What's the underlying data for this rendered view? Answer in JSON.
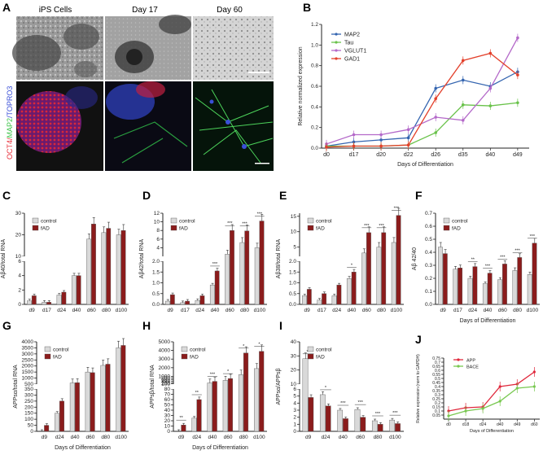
{
  "panel_letters": [
    "A",
    "B",
    "C",
    "D",
    "E",
    "F",
    "G",
    "H",
    "I",
    "J"
  ],
  "panel_a": {
    "column_titles": [
      "iPS Cells",
      "Day 17",
      "Day 60"
    ],
    "stain_label_parts": [
      {
        "text": "OCT4/",
        "color": "#e8303a"
      },
      {
        "text": "MAP2",
        "color": "#3ec44a"
      },
      {
        "text": "/TOPRO3",
        "color": "#3a4fd8"
      }
    ]
  },
  "colors": {
    "control": "#d9d9d9",
    "fad": "#8b1c1c",
    "map2": "#3465b0",
    "tau": "#69c24a",
    "vglut1": "#b469c9",
    "gad1": "#e3402b",
    "app": "#e0283c",
    "bace": "#78c850"
  },
  "chart_data": [
    {
      "panel": "B",
      "type": "line",
      "x": [
        "d0",
        "d17",
        "d20",
        "d22",
        "d26",
        "d35",
        "d40",
        "d49"
      ],
      "xlabel": "Days of Differentiation",
      "ylabel": "Relative normalized expression",
      "ylim": [
        0,
        1.2
      ],
      "yticks": [
        "0.0",
        "0.2",
        "0.4",
        "0.6",
        "0.8",
        "1.0",
        "1.2"
      ],
      "series": [
        {
          "name": "MAP2",
          "values": [
            0.02,
            0.06,
            0.08,
            0.1,
            0.58,
            0.66,
            0.6,
            0.74
          ]
        },
        {
          "name": "Tau",
          "values": [
            0.02,
            0.02,
            0.02,
            0.03,
            0.15,
            0.42,
            0.41,
            0.44
          ]
        },
        {
          "name": "VGLUT1",
          "values": [
            0.04,
            0.13,
            0.13,
            0.18,
            0.3,
            0.27,
            0.58,
            1.07
          ]
        },
        {
          "name": "GAD1",
          "values": [
            0.01,
            0.02,
            0.02,
            0.03,
            0.48,
            0.85,
            0.92,
            0.71
          ]
        }
      ]
    },
    {
      "panel": "C",
      "type": "bar",
      "ylabel": "Aβ40/total RNA",
      "xlabel": "",
      "categories": [
        "d9",
        "d17",
        "d24",
        "d40",
        "d60",
        "d80",
        "d100"
      ],
      "series": [
        {
          "name": "control",
          "values": [
            0.5,
            0.3,
            1.3,
            4.0,
            18,
            21,
            20
          ]
        },
        {
          "name": "fAD",
          "values": [
            1.2,
            0.3,
            1.7,
            4.0,
            25,
            23,
            22
          ]
        }
      ],
      "broken_axis": {
        "lower": [
          0,
          6
        ],
        "upper": [
          10,
          30
        ]
      },
      "yticks": [
        "0",
        "2",
        "4",
        "6",
        "10",
        "20",
        "30"
      ],
      "legend": [
        "control",
        "fAD"
      ],
      "significance": []
    },
    {
      "panel": "D",
      "type": "bar",
      "ylabel": "Aβ42/total RNA",
      "xlabel": "",
      "categories": [
        "d9",
        "d17",
        "d24",
        "d40",
        "d60",
        "d80",
        "d100"
      ],
      "series": [
        {
          "name": "control",
          "values": [
            0.15,
            0.08,
            0.18,
            0.9,
            2.5,
            5.2,
            4.0
          ]
        },
        {
          "name": "fAD",
          "values": [
            0.45,
            0.15,
            0.4,
            1.55,
            8.0,
            7.9,
            10.2
          ]
        }
      ],
      "broken_axis": {
        "lower": [
          0,
          2.0
        ],
        "upper": [
          2,
          12
        ]
      },
      "yticks": [
        "0.0",
        "0.5",
        "1.0",
        "1.5",
        "2.0",
        "4",
        "6",
        "8",
        "10",
        "12"
      ],
      "legend": [
        "control",
        "fAD"
      ],
      "significance": [
        "",
        "",
        "",
        "***",
        "***",
        "***",
        "***"
      ]
    },
    {
      "panel": "E",
      "type": "bar",
      "ylabel": "Aβ38/total RNA",
      "xlabel": "",
      "categories": [
        "d9",
        "d17",
        "d24",
        "d40",
        "d60",
        "d80",
        "d100"
      ],
      "series": [
        {
          "name": "control",
          "values": [
            0.4,
            0.2,
            0.4,
            1.2,
            3.1,
            5,
            6.5
          ]
        },
        {
          "name": "fAD",
          "values": [
            0.7,
            0.5,
            0.9,
            1.5,
            9.7,
            9.7,
            15.3
          ]
        }
      ],
      "broken_axis": {
        "lower": [
          0,
          2.0
        ],
        "upper": [
          2,
          16
        ]
      },
      "yticks": [
        "0.0",
        "0.5",
        "1.0",
        "1.5",
        "2.0",
        "5",
        "10",
        "15"
      ],
      "legend": [
        "control",
        "fAD"
      ],
      "significance": [
        "",
        "",
        "",
        "*",
        "***",
        "***",
        "***"
      ]
    },
    {
      "panel": "F",
      "type": "bar",
      "ylabel": "Aβ 42/40",
      "xlabel": "Days of Differentiation",
      "categories": [
        "d9",
        "d17",
        "d24",
        "d40",
        "d60",
        "d80",
        "d100"
      ],
      "series": [
        {
          "name": "control",
          "values": [
            0.44,
            0.27,
            0.2,
            0.16,
            0.19,
            0.26,
            0.23
          ]
        },
        {
          "name": "fAD",
          "values": [
            0.39,
            0.28,
            0.29,
            0.24,
            0.31,
            0.36,
            0.47
          ]
        }
      ],
      "ylim": [
        0,
        0.7
      ],
      "yticks": [
        "0.0",
        "0.1",
        "0.2",
        "0.3",
        "0.4",
        "0.5",
        "0.6",
        "0.7"
      ],
      "legend": [
        "control",
        "fAD"
      ],
      "significance": [
        "",
        "",
        "**",
        "***",
        "***",
        "***",
        "***"
      ]
    },
    {
      "panel": "G",
      "type": "bar",
      "ylabel": "APPsα/total RNA",
      "xlabel": "Days of Differentiation",
      "categories": [
        "d9",
        "d24",
        "d40",
        "d60",
        "d80",
        "d100"
      ],
      "series": [
        {
          "name": "control",
          "values": [
            0,
            150,
            600,
            1500,
            2050,
            3500
          ]
        },
        {
          "name": "fAD",
          "values": [
            50,
            250,
            620,
            1450,
            2150,
            3700
          ]
        }
      ],
      "broken_axis": {
        "lower": [
          0,
          350
        ],
        "upper": [
          500,
          4000
        ]
      },
      "yticks": [
        "0",
        "50",
        "100",
        "150",
        "200",
        "250",
        "300",
        "350",
        "500",
        "1000",
        "1500",
        "2000",
        "2500",
        "3000",
        "3500",
        "4000"
      ],
      "legend": [
        "control",
        "fAD"
      ],
      "significance": []
    },
    {
      "panel": "H",
      "type": "bar",
      "ylabel": "APPsβ/total RNA",
      "xlabel": "Days of Differentiation",
      "categories": [
        "d9",
        "d24",
        "d40",
        "d60",
        "d80",
        "d100"
      ],
      "series": [
        {
          "name": "control",
          "values": [
            0,
            25,
            240,
            540,
            1200,
            1900
          ]
        },
        {
          "name": "fAD",
          "values": [
            12,
            60,
            420,
            750,
            3700,
            3900
          ]
        }
      ],
      "broken_axis": {
        "lower": [
          0,
          80
        ],
        "upper": [
          100,
          5000
        ]
      },
      "yticks": [
        "0",
        "10",
        "20",
        "30",
        "40",
        "50",
        "60",
        "70",
        "80",
        "100",
        "200",
        "400",
        "600",
        "800",
        "1000",
        "2000",
        "3000",
        "4000",
        "5000"
      ],
      "legend": [
        "control",
        "fAD"
      ],
      "significance": [
        "**",
        "**",
        "***",
        "*",
        "*",
        "*"
      ]
    },
    {
      "panel": "I",
      "type": "bar",
      "ylabel": "APPsα/APPsβ",
      "xlabel": "",
      "categories": [
        "d9",
        "d24",
        "d40",
        "d60",
        "d80",
        "d100"
      ],
      "series": [
        {
          "name": "control",
          "values": [
            28,
            5.2,
            3.0,
            3.1,
            1.5,
            1.6
          ]
        },
        {
          "name": "fAD",
          "values": [
            4.8,
            3.6,
            1.8,
            2.0,
            1.0,
            1.1
          ]
        }
      ],
      "broken_axis": {
        "lower": [
          0,
          6
        ],
        "upper": [
          10,
          40
        ]
      },
      "yticks": [
        "0",
        "1",
        "2",
        "3",
        "4",
        "5",
        "6",
        "10",
        "20",
        "30",
        "40"
      ],
      "legend": [
        "control",
        "fAD"
      ],
      "significance": [
        "**",
        "*",
        "***",
        "***",
        "***",
        "***"
      ]
    },
    {
      "panel": "J",
      "type": "line",
      "x": [
        "d0",
        "d18",
        "d24",
        "d40",
        "d49",
        "d60"
      ],
      "xlabel": "Days of Differentiation",
      "ylabel": "Relative expression (norm to GAPDH)",
      "ylim": [
        0,
        0.75
      ],
      "yticks": [
        "0.05",
        "0.1",
        "0.15",
        "0.2",
        "0.25",
        "0.3",
        "0.35",
        "0.4",
        "0.45",
        "0.5",
        "0.55",
        "0.6",
        "0.65",
        "0.7",
        "0.75"
      ],
      "series": [
        {
          "name": "APP",
          "values": [
            0.1,
            0.14,
            0.15,
            0.4,
            0.43,
            0.58
          ]
        },
        {
          "name": "BACE",
          "values": [
            0.04,
            0.1,
            0.13,
            0.22,
            0.38,
            0.4
          ]
        }
      ]
    }
  ]
}
